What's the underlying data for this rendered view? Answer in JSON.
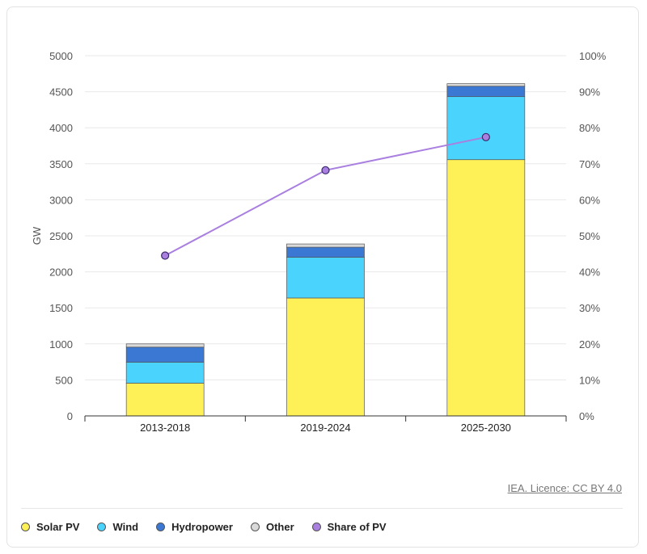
{
  "chart_data": {
    "type": "bar",
    "categories": [
      "2013-2018",
      "2019-2024",
      "2025-2030"
    ],
    "series": [
      {
        "name": "Solar PV",
        "values": [
          455,
          1637,
          3557
        ],
        "color": "#fef157"
      },
      {
        "name": "Wind",
        "values": [
          290,
          565,
          875
        ],
        "color": "#4ad3fd"
      },
      {
        "name": "Hydropower",
        "values": [
          210,
          140,
          145
        ],
        "color": "#3b78d4"
      },
      {
        "name": "Other",
        "values": [
          45,
          45,
          35
        ],
        "color": "#d9d9d9"
      }
    ],
    "line_series": {
      "name": "Share of PV",
      "values": [
        44.5,
        68.2,
        77.4
      ],
      "color": "#a97fe0",
      "axis": "right"
    },
    "ylabel": "GW",
    "ylim": [
      0,
      5000
    ],
    "yticks": [
      "0",
      "500",
      "1000",
      "1500",
      "2000",
      "2500",
      "3000",
      "3500",
      "4000",
      "4500",
      "5000"
    ],
    "y2lim": [
      0,
      100
    ],
    "y2ticks": [
      "0%",
      "10%",
      "20%",
      "30%",
      "40%",
      "50%",
      "60%",
      "70%",
      "80%",
      "90%",
      "100%"
    ],
    "grid": true,
    "legend": "bottom-left"
  },
  "source": "IEA. Licence: CC BY 4.0"
}
